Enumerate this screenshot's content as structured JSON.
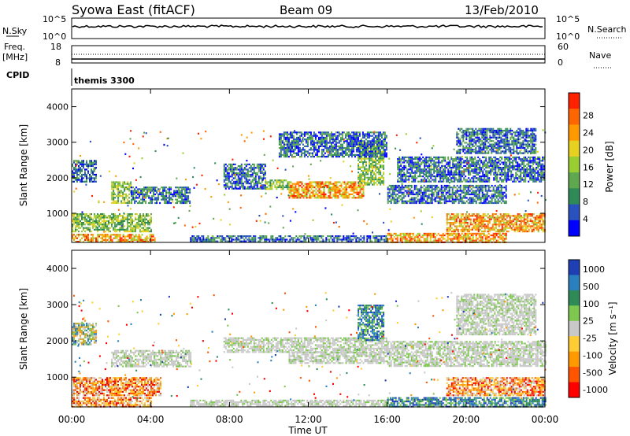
{
  "header": {
    "station": "Syowa East (fitACF)",
    "beam": "Beam 09",
    "date": "13/Feb/2010"
  },
  "top_panels": {
    "nsky_label": "N.Sky",
    "nsky_ticks": [
      "10^5",
      "10^0"
    ],
    "nsearch_label": "N.Search",
    "nsearch_ticks": [
      "10^5",
      "10^0"
    ],
    "freq_label": "Freq.",
    "freq_unit": "[MHz]",
    "freq_ticks": [
      "18",
      "8"
    ],
    "nave_label": "Nave",
    "nave_ticks": [
      "60",
      "0"
    ],
    "cpid_label": "CPID",
    "cpid_value": "themis 3300"
  },
  "chart_data": [
    {
      "type": "heatmap",
      "name": "power",
      "ylabel": "Slant Range [km]",
      "ylim": [
        180,
        4500
      ],
      "yticks": [
        "1000",
        "2000",
        "3000",
        "4000"
      ],
      "xlim": [
        "00:00",
        "24:00"
      ],
      "colorbar_label": "Power [dB]",
      "colorbar_ticks": [
        "4",
        "8",
        "12",
        "16",
        "20",
        "24",
        "28"
      ],
      "colors": [
        "#0000ff",
        "#2a52be",
        "#2e8b57",
        "#5fa84f",
        "#9acd32",
        "#e6d020",
        "#ff9900",
        "#ff6600",
        "#ff2200"
      ],
      "regions": [
        {
          "t": [
            0.0,
            1.7
          ],
          "r": [
            200,
            420
          ],
          "level": "high"
        },
        {
          "t": [
            1.7,
            4.2
          ],
          "r": [
            200,
            420
          ],
          "level": "high"
        },
        {
          "t": [
            0.0,
            4.0
          ],
          "r": [
            500,
            1000
          ],
          "level": "mid"
        },
        {
          "t": [
            0.0,
            1.2
          ],
          "r": [
            1900,
            2500
          ],
          "level": "low"
        },
        {
          "t": [
            2.0,
            3.0
          ],
          "r": [
            1300,
            1900
          ],
          "level": "mid"
        },
        {
          "t": [
            3.0,
            6.0
          ],
          "r": [
            1300,
            1750
          ],
          "level": "low"
        },
        {
          "t": [
            7.7,
            9.8
          ],
          "r": [
            1700,
            2400
          ],
          "level": "low"
        },
        {
          "t": [
            9.8,
            11.0
          ],
          "r": [
            1700,
            1950
          ],
          "level": "mid"
        },
        {
          "t": [
            11.0,
            14.8
          ],
          "r": [
            1450,
            1900
          ],
          "level": "high"
        },
        {
          "t": [
            14.5,
            15.8
          ],
          "r": [
            1800,
            3000
          ],
          "level": "mid"
        },
        {
          "t": [
            10.5,
            16.0
          ],
          "r": [
            2600,
            3300
          ],
          "level": "low"
        },
        {
          "t": [
            6.0,
            16.0
          ],
          "r": [
            200,
            380
          ],
          "level": "low"
        },
        {
          "t": [
            16.0,
            22.0
          ],
          "r": [
            1300,
            1800
          ],
          "level": "low"
        },
        {
          "t": [
            16.0,
            22.0
          ],
          "r": [
            200,
            450
          ],
          "level": "high"
        },
        {
          "t": [
            19.0,
            24.0
          ],
          "r": [
            500,
            1000
          ],
          "level": "high"
        },
        {
          "t": [
            16.5,
            24.0
          ],
          "r": [
            1900,
            2600
          ],
          "level": "low"
        },
        {
          "t": [
            19.5,
            23.5
          ],
          "r": [
            2700,
            3400
          ],
          "level": "low"
        }
      ]
    },
    {
      "type": "heatmap",
      "name": "velocity",
      "ylabel": "Slant Range [km]",
      "ylim": [
        180,
        4500
      ],
      "yticks": [
        "1000",
        "2000",
        "3000",
        "4000"
      ],
      "xlabel": "Time UT",
      "xticks": [
        "00:00",
        "04:00",
        "08:00",
        "12:00",
        "16:00",
        "20:00",
        "00:00"
      ],
      "colorbar_label": "Velocity [m s⁻¹]",
      "colorbar_ticks": [
        "1000",
        "500",
        "100",
        "25",
        "-25",
        "-100",
        "-500",
        "-1000"
      ],
      "colors": [
        "#1f3fb5",
        "#2a7fbf",
        "#2e8b57",
        "#7ec850",
        "#c8c8c8",
        "#ffcc33",
        "#ff9900",
        "#ff5500",
        "#ff0000"
      ],
      "regions": [
        {
          "t": [
            0.0,
            4.0
          ],
          "r": [
            200,
            450
          ],
          "level": "neg"
        },
        {
          "t": [
            0.0,
            4.5
          ],
          "r": [
            500,
            1000
          ],
          "level": "neg"
        },
        {
          "t": [
            0.0,
            1.2
          ],
          "r": [
            1900,
            2500
          ],
          "level": "mixed"
        },
        {
          "t": [
            2.0,
            6.0
          ],
          "r": [
            1300,
            1750
          ],
          "level": "grey"
        },
        {
          "t": [
            7.7,
            16.0
          ],
          "r": [
            1700,
            2100
          ],
          "level": "grey"
        },
        {
          "t": [
            11.0,
            16.0
          ],
          "r": [
            1400,
            1700
          ],
          "level": "grey"
        },
        {
          "t": [
            14.5,
            15.8
          ],
          "r": [
            2000,
            3000
          ],
          "level": "pos"
        },
        {
          "t": [
            6.0,
            16.0
          ],
          "r": [
            200,
            380
          ],
          "level": "grey"
        },
        {
          "t": [
            16.0,
            24.0
          ],
          "r": [
            1300,
            2000
          ],
          "level": "grey"
        },
        {
          "t": [
            16.0,
            24.0
          ],
          "r": [
            200,
            450
          ],
          "level": "pos"
        },
        {
          "t": [
            19.0,
            24.0
          ],
          "r": [
            500,
            1000
          ],
          "level": "neg"
        },
        {
          "t": [
            19.5,
            23.5
          ],
          "r": [
            2200,
            3300
          ],
          "level": "grey"
        }
      ]
    }
  ]
}
